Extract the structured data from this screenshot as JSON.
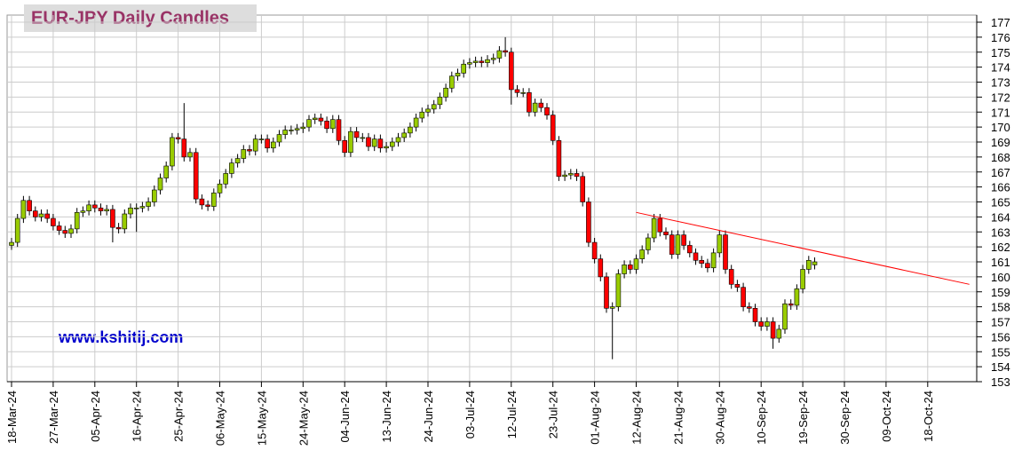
{
  "chart_data": {
    "type": "candlestick",
    "title": "EUR-JPY Daily  Candles",
    "watermark": "www.kshitij.com",
    "categories": [
      "18-Mar-24",
      null,
      null,
      null,
      null,
      null,
      null,
      "27-Mar-24",
      null,
      null,
      null,
      null,
      null,
      null,
      "05-Apr-24",
      null,
      null,
      null,
      null,
      null,
      null,
      "16-Apr-24",
      null,
      null,
      null,
      null,
      null,
      null,
      "25-Apr-24",
      null,
      null,
      null,
      null,
      null,
      null,
      "06-May-24",
      null,
      null,
      null,
      null,
      null,
      null,
      "15-May-24",
      null,
      null,
      null,
      null,
      null,
      null,
      "24-May-24",
      null,
      null,
      null,
      null,
      null,
      null,
      "04-Jun-24",
      null,
      null,
      null,
      null,
      null,
      null,
      "13-Jun-24",
      null,
      null,
      null,
      null,
      null,
      null,
      "24-Jun-24",
      null,
      null,
      null,
      null,
      null,
      null,
      "03-Jul-24",
      null,
      null,
      null,
      null,
      null,
      null,
      "12-Jul-24",
      null,
      null,
      null,
      null,
      null,
      null,
      "23-Jul-24",
      null,
      null,
      null,
      null,
      null,
      null,
      "01-Aug-24",
      null,
      null,
      null,
      null,
      null,
      null,
      "12-Aug-24",
      null,
      null,
      null,
      null,
      null,
      null,
      "21-Aug-24",
      null,
      null,
      null,
      null,
      null,
      null,
      "30-Aug-24",
      null,
      null,
      null,
      null,
      null,
      null,
      "10-Sep-24",
      null,
      null,
      null,
      null,
      null,
      null,
      "19-Sep-24",
      null,
      null,
      null,
      null,
      null,
      null,
      "30-Sep-24",
      null,
      null,
      null,
      null,
      null,
      null,
      "09-Oct-24",
      null,
      null,
      null,
      null,
      null,
      null,
      "18-Oct-24",
      null,
      null,
      null,
      null,
      null,
      null,
      null
    ],
    "open": [
      162.1,
      162.3,
      163.9,
      165.1,
      164.4,
      164.0,
      164.2,
      163.9,
      163.4,
      163.1,
      162.9,
      163.2,
      164.3,
      164.4,
      164.8,
      164.6,
      164.4,
      164.5,
      163.3,
      163.2,
      164.2,
      164.6,
      164.6,
      164.7,
      165.0,
      165.8,
      166.6,
      167.4,
      169.3,
      169.2,
      168.0,
      168.3,
      165.2,
      164.8,
      164.7,
      165.6,
      166.2,
      166.9,
      167.6,
      167.9,
      168.5,
      168.4,
      169.2,
      169.2,
      168.6,
      169.0,
      169.5,
      169.8,
      169.8,
      169.9,
      170.0,
      170.5,
      170.6,
      170.4,
      169.9,
      170.5,
      169.1,
      168.3,
      169.7,
      169.3,
      169.3,
      168.7,
      169.2,
      168.6,
      168.7,
      169.0,
      169.3,
      169.6,
      170.0,
      170.6,
      171.0,
      171.2,
      171.5,
      172.0,
      172.6,
      173.4,
      173.6,
      174.2,
      174.3,
      174.4,
      174.3,
      174.5,
      174.6,
      175.1,
      175.0,
      172.5,
      172.3,
      172.3,
      171.0,
      171.6,
      171.3,
      170.8,
      169.1,
      166.7,
      166.8,
      166.9,
      166.7,
      165.0,
      162.3,
      161.2,
      160.0,
      157.9,
      158.0,
      160.2,
      160.8,
      160.5,
      161.2,
      161.8,
      162.6,
      163.9,
      163.0,
      162.8,
      161.5,
      162.8,
      162.1,
      161.6,
      161.1,
      160.9,
      160.6,
      161.6,
      162.8,
      160.5,
      159.5,
      159.3,
      158.0,
      157.9,
      157.0,
      156.7,
      157.0,
      155.9,
      156.5,
      158.2,
      158.1,
      159.2,
      160.5,
      160.8,
      null,
      null,
      null,
      null,
      null,
      null,
      null,
      null,
      null,
      null,
      null,
      null,
      null,
      null,
      null,
      null,
      null,
      null,
      null,
      null,
      null,
      null,
      null,
      null,
      null,
      null
    ],
    "high": [
      162.6,
      164.2,
      165.4,
      165.4,
      164.7,
      164.5,
      164.5,
      164.2,
      163.7,
      163.4,
      163.5,
      164.6,
      164.7,
      165.1,
      165.1,
      164.9,
      164.8,
      164.8,
      163.6,
      164.5,
      164.9,
      164.9,
      165.0,
      165.3,
      166.1,
      166.9,
      167.7,
      169.6,
      169.6,
      171.6,
      168.6,
      168.6,
      165.5,
      165.1,
      165.9,
      166.5,
      167.2,
      167.9,
      168.2,
      168.8,
      168.8,
      169.5,
      169.5,
      169.5,
      169.3,
      169.8,
      170.1,
      170.1,
      170.2,
      170.3,
      170.8,
      170.9,
      170.9,
      170.7,
      170.8,
      170.8,
      169.4,
      170.0,
      170.0,
      169.6,
      169.6,
      169.5,
      169.5,
      169.0,
      169.3,
      169.6,
      169.9,
      170.3,
      170.9,
      171.3,
      171.5,
      171.8,
      172.3,
      172.9,
      173.7,
      173.9,
      174.5,
      174.6,
      174.7,
      174.7,
      174.8,
      174.9,
      175.4,
      176.0,
      175.3,
      172.8,
      172.6,
      172.6,
      171.9,
      171.9,
      171.6,
      171.1,
      169.4,
      167.1,
      167.2,
      167.2,
      167.0,
      165.3,
      162.6,
      161.5,
      160.3,
      158.3,
      160.5,
      161.1,
      161.1,
      161.5,
      162.1,
      162.9,
      164.2,
      164.2,
      163.3,
      163.1,
      163.1,
      163.1,
      162.4,
      161.9,
      161.4,
      161.2,
      161.9,
      163.1,
      163.1,
      160.8,
      159.8,
      159.6,
      158.3,
      158.2,
      157.3,
      157.3,
      157.3,
      156.8,
      158.5,
      158.5,
      159.5,
      160.8,
      161.4,
      161.3,
      null,
      null,
      null,
      null,
      null,
      null,
      null,
      null,
      null,
      null,
      null,
      null,
      null,
      null,
      null,
      null,
      null,
      null,
      null,
      null,
      null,
      null,
      null,
      null,
      null,
      null
    ],
    "low": [
      161.8,
      162.0,
      163.6,
      164.1,
      163.7,
      163.7,
      163.6,
      163.1,
      162.8,
      162.6,
      162.6,
      162.9,
      164.0,
      164.1,
      164.3,
      164.1,
      164.1,
      162.3,
      162.9,
      162.9,
      163.9,
      163.0,
      164.3,
      164.4,
      164.7,
      165.5,
      166.3,
      167.1,
      168.9,
      167.7,
      167.7,
      164.9,
      164.5,
      164.4,
      164.4,
      165.3,
      165.9,
      166.6,
      167.3,
      167.6,
      168.1,
      168.1,
      168.9,
      168.3,
      168.3,
      168.7,
      169.2,
      169.5,
      169.5,
      169.6,
      169.7,
      170.2,
      170.1,
      169.6,
      169.6,
      168.8,
      168.0,
      168.0,
      169.0,
      169.0,
      168.4,
      168.4,
      168.3,
      168.3,
      168.4,
      168.7,
      169.0,
      169.3,
      169.7,
      170.3,
      170.7,
      170.9,
      171.2,
      171.7,
      172.3,
      173.1,
      173.3,
      173.9,
      174.0,
      174.0,
      174.0,
      174.2,
      174.3,
      174.7,
      171.5,
      172.0,
      172.0,
      170.7,
      170.7,
      171.0,
      170.5,
      168.8,
      166.4,
      166.4,
      166.5,
      166.4,
      164.7,
      162.0,
      160.9,
      159.7,
      157.6,
      154.5,
      157.7,
      159.9,
      160.2,
      160.2,
      160.9,
      161.5,
      162.3,
      162.7,
      162.5,
      161.2,
      161.2,
      161.8,
      161.3,
      160.8,
      160.6,
      160.3,
      160.3,
      161.3,
      160.2,
      159.2,
      159.0,
      157.7,
      157.6,
      156.7,
      156.4,
      156.4,
      155.2,
      155.6,
      156.2,
      157.8,
      157.8,
      158.9,
      160.2,
      160.5,
      null,
      null,
      null,
      null,
      null,
      null,
      null,
      null,
      null,
      null,
      null,
      null,
      null,
      null,
      null,
      null,
      null,
      null,
      null,
      null,
      null,
      null,
      null,
      null,
      null,
      null
    ],
    "close": [
      162.3,
      163.9,
      165.1,
      164.4,
      164.0,
      164.2,
      163.9,
      163.4,
      163.1,
      162.9,
      163.2,
      164.3,
      164.4,
      164.8,
      164.6,
      164.4,
      164.5,
      163.3,
      163.2,
      164.2,
      164.6,
      164.6,
      164.7,
      165.0,
      165.8,
      166.6,
      167.4,
      169.3,
      169.2,
      168.0,
      168.3,
      165.2,
      164.8,
      164.7,
      165.6,
      166.2,
      166.9,
      167.6,
      167.9,
      168.5,
      168.4,
      169.2,
      169.2,
      168.6,
      169.0,
      169.5,
      169.8,
      169.8,
      169.9,
      170.0,
      170.5,
      170.6,
      170.4,
      169.9,
      170.5,
      169.1,
      168.3,
      169.7,
      169.3,
      169.3,
      168.7,
      169.2,
      168.6,
      168.7,
      169.0,
      169.3,
      169.6,
      170.0,
      170.6,
      171.0,
      171.2,
      171.5,
      172.0,
      172.6,
      173.4,
      173.6,
      174.2,
      174.3,
      174.4,
      174.3,
      174.5,
      174.6,
      175.1,
      175.0,
      172.5,
      172.3,
      172.3,
      171.0,
      171.6,
      171.3,
      170.8,
      169.1,
      166.7,
      166.8,
      166.9,
      166.7,
      165.0,
      162.3,
      161.2,
      160.0,
      157.9,
      158.0,
      160.2,
      160.8,
      160.5,
      161.2,
      161.8,
      162.6,
      163.9,
      163.0,
      162.8,
      161.5,
      162.8,
      162.1,
      161.6,
      161.1,
      160.9,
      160.6,
      161.6,
      162.8,
      160.5,
      159.5,
      159.3,
      158.0,
      157.9,
      157.0,
      156.7,
      157.0,
      155.9,
      156.5,
      158.2,
      158.1,
      159.2,
      160.5,
      161.1,
      161.0,
      null,
      null,
      null,
      null,
      null,
      null,
      null,
      null,
      null,
      null,
      null,
      null,
      null,
      null,
      null,
      null,
      null,
      null,
      null,
      null,
      null,
      null,
      null,
      null,
      null,
      null
    ],
    "up_color": "#99cc00",
    "down_color": "#ff0000",
    "ylim": [
      153,
      177
    ],
    "yticks": [
      153,
      154,
      155,
      156,
      157,
      158,
      159,
      160,
      161,
      162,
      163,
      164,
      165,
      166,
      167,
      168,
      169,
      170,
      171,
      172,
      173,
      174,
      175,
      176,
      177
    ],
    "grid": true,
    "trendline": {
      "start": "12-Aug-24",
      "values": [
        164.3,
        159.5
      ],
      "color": "#ff0000"
    }
  }
}
